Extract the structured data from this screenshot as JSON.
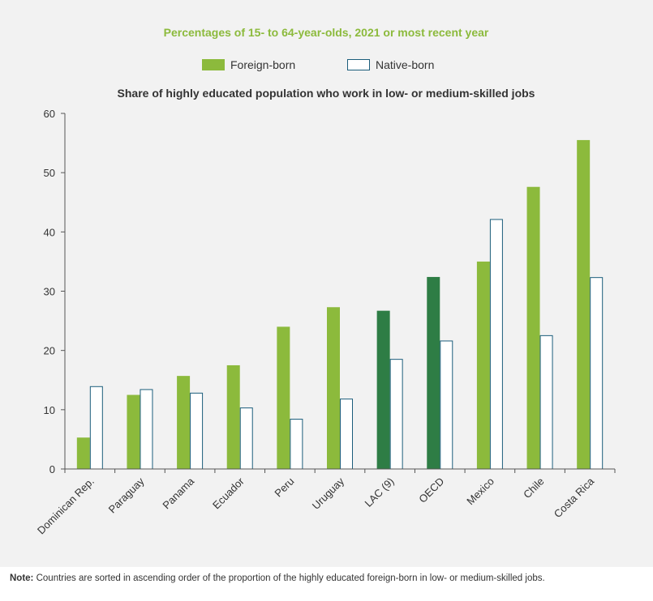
{
  "chart_data": {
    "type": "bar",
    "title": "Percentages of 15- to 64-year-olds, 2021 or most recent year",
    "subtitle": "Share of highly educated population who work in low- or medium-skilled jobs",
    "xlabel": "",
    "ylabel": "",
    "ylim": [
      0,
      60
    ],
    "yticks": [
      "0",
      "10",
      "20",
      "30",
      "40",
      "50",
      "60"
    ],
    "grid": false,
    "legend_position": "top-center",
    "categories": [
      "Dominican Rep.",
      "Paraguay",
      "Panama",
      "Ecuador",
      "Peru",
      "Uruguay",
      "LAC (9)",
      "OECD",
      "Mexico",
      "Chile",
      "Costa Rica"
    ],
    "highlighted_categories": [
      "LAC (9)",
      "OECD"
    ],
    "series": [
      {
        "name": "Foreign-born",
        "values": [
          5.3,
          12.5,
          15.7,
          17.5,
          24.0,
          27.3,
          26.7,
          32.4,
          35.0,
          47.6,
          55.5
        ]
      },
      {
        "name": "Native-born",
        "values": [
          13.9,
          13.4,
          12.8,
          10.3,
          8.4,
          11.8,
          18.5,
          21.6,
          42.1,
          22.5,
          32.3
        ]
      }
    ],
    "colors": {
      "foreign": "#8cba3c",
      "foreign_highlight": "#2e7d45",
      "native_fill": "#ffffff",
      "native_stroke": "#1b5d7b",
      "title": "#8cba3c",
      "text": "#333333",
      "axis": "#555555"
    }
  },
  "note": {
    "label": "Note:",
    "text": "Countries are sorted in ascending order of the proportion of the highly educated foreign-born in low- or medium-skilled jobs."
  }
}
